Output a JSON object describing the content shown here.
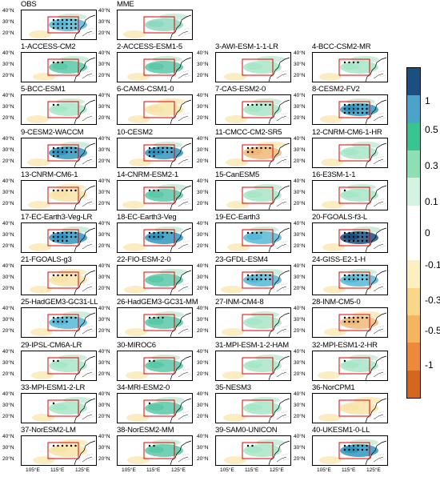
{
  "panels": [
    {
      "title": "OBS",
      "region": {
        "fill": "#57b8d6",
        "sig": 18
      }
    },
    {
      "title": "MME",
      "region": {
        "fill": "#8fd8c0",
        "sig": 0
      }
    },
    {
      "title": "1-ACCESS-CM2",
      "region": {
        "fill": "#5cc8a8",
        "sig": 3
      }
    },
    {
      "title": "2-ACCESS-ESM1-5",
      "region": {
        "fill": "#5cc8a8",
        "sig": 0
      }
    },
    {
      "title": "3-AWI-ESM-1-1-LR",
      "region": {
        "fill": "#a8e6c8",
        "sig": 0
      }
    },
    {
      "title": "4-BCC-CSM2-MR",
      "region": {
        "fill": "#a8e6c8",
        "sig": 4
      }
    },
    {
      "title": "5-BCC-ESM1",
      "region": {
        "fill": "#a8e6c8",
        "sig": 2
      }
    },
    {
      "title": "6-CAMS-CSM1-0",
      "region": {
        "fill": "#f8e4a8",
        "sig": 0
      }
    },
    {
      "title": "7-CAS-ESM2-0",
      "region": {
        "fill": "#a8e6c8",
        "sig": 6
      }
    },
    {
      "title": "8-CESM2-FV2",
      "region": {
        "fill": "#2f96c0",
        "sig": 18
      }
    },
    {
      "title": "9-CESM2-WACCM",
      "region": {
        "fill": "#2f96c0",
        "sig": 14
      }
    },
    {
      "title": "10-CESM2",
      "region": {
        "fill": "#2f96c0",
        "sig": 14
      }
    },
    {
      "title": "11-CMCC-CM2-SR5",
      "region": {
        "fill": "#f0b878",
        "sig": 8
      }
    },
    {
      "title": "12-CNRM-CM6-1-HR",
      "region": {
        "fill": "#a8e6c8",
        "sig": 0
      }
    },
    {
      "title": "13-CNRM-CM6-1",
      "region": {
        "fill": "#f8e4a8",
        "sig": 6
      }
    },
    {
      "title": "14-CNRM-ESM2-1",
      "region": {
        "fill": "#5cc8a8",
        "sig": 3
      }
    },
    {
      "title": "15-CanESM5",
      "region": {
        "fill": "#a8e6c8",
        "sig": 0
      }
    },
    {
      "title": "16-E3SM-1-1",
      "region": {
        "fill": "#a8e6c8",
        "sig": 1
      }
    },
    {
      "title": "17-EC-Earth3-Veg-LR",
      "region": {
        "fill": "#2f96c0",
        "sig": 16
      }
    },
    {
      "title": "18-EC-Earth3-Veg",
      "region": {
        "fill": "#2f96c0",
        "sig": 10
      }
    },
    {
      "title": "19-EC-Earth3",
      "region": {
        "fill": "#57b8d6",
        "sig": 4
      }
    },
    {
      "title": "20-FGOALS-f3-L",
      "region": {
        "fill": "#1b4f80",
        "sig": 18
      }
    },
    {
      "title": "21-FGOALS-g3",
      "region": {
        "fill": "#f8e4a8",
        "sig": 6
      }
    },
    {
      "title": "22-FIO-ESM-2-0",
      "region": {
        "fill": "#5cc8a8",
        "sig": 0
      }
    },
    {
      "title": "23-GFDL-ESM4",
      "region": {
        "fill": "#57b8d6",
        "sig": 12
      }
    },
    {
      "title": "24-GISS-E2-1-H",
      "region": {
        "fill": "#57b8d6",
        "sig": 12
      }
    },
    {
      "title": "25-HadGEM3-GC31-LL",
      "region": {
        "fill": "#57b8d6",
        "sig": 10
      }
    },
    {
      "title": "26-HadGEM3-GC31-MM",
      "region": {
        "fill": "#5cc8a8",
        "sig": 4
      }
    },
    {
      "title": "27-INM-CM4-8",
      "region": {
        "fill": "#a8e6c8",
        "sig": 0
      }
    },
    {
      "title": "28-INM-CM5-0",
      "region": {
        "fill": "#f0b878",
        "sig": 10
      }
    },
    {
      "title": "29-IPSL-CM6A-LR",
      "region": {
        "fill": "#a8e6c8",
        "sig": 2
      }
    },
    {
      "title": "30-MIROC6",
      "region": {
        "fill": "#5cc8a8",
        "sig": 2
      }
    },
    {
      "title": "31-MPI-ESM-1-2-HAM",
      "region": {
        "fill": "#a8e6c8",
        "sig": 0
      }
    },
    {
      "title": "32-MPI-ESM1-2-HR",
      "region": {
        "fill": "#a8e6c8",
        "sig": 1
      }
    },
    {
      "title": "33-MPI-ESM1-2-LR",
      "region": {
        "fill": "#a8e6c8",
        "sig": 1
      }
    },
    {
      "title": "34-MRI-ESM2-0",
      "region": {
        "fill": "#5cc8a8",
        "sig": 1
      }
    },
    {
      "title": "35-NESM3",
      "region": {
        "fill": "#a8e6c8",
        "sig": 0
      }
    },
    {
      "title": "36-NorCPM1",
      "region": {
        "fill": "#f8e4a8",
        "sig": 0
      }
    },
    {
      "title": "37-NorESM2-LM",
      "region": {
        "fill": "#f8e4a8",
        "sig": 6
      }
    },
    {
      "title": "38-NorESM2-MM",
      "region": {
        "fill": "#5cc8a8",
        "sig": 2
      }
    },
    {
      "title": "39-SAM0-UNICON",
      "region": {
        "fill": "#a8e6c8",
        "sig": 2
      }
    },
    {
      "title": "40-UKESM1-0-LL",
      "region": {
        "fill": "#2f96c0",
        "sig": 12
      }
    }
  ],
  "y_ticks": [
    "40°N",
    "30°N",
    "20°N"
  ],
  "x_ticks": [
    "105°E",
    "115°E",
    "125°E"
  ],
  "colorbar": {
    "labels": [
      "1",
      "0.5",
      "0.3",
      "0.1",
      "0",
      "-0.1",
      "-0.3",
      "-0.5",
      "-1"
    ],
    "colors": [
      "#1b4f80",
      "#4aa3c8",
      "#37c592",
      "#8ee0b4",
      "#d4f3e0",
      "#ffffff",
      "#ffffff",
      "#fdf0c0",
      "#f8d888",
      "#f3b65e",
      "#ec8a3a",
      "#d4661e"
    ]
  }
}
